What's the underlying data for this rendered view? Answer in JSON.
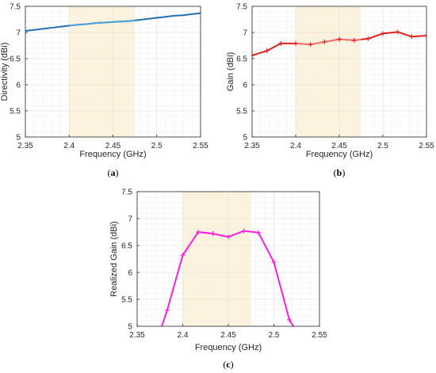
{
  "colors": {
    "band": "#fdf3dc",
    "grid_major": "#e3e3e3",
    "grid_minor": "#f1f1f1",
    "axis": "#262626"
  },
  "chart_data": [
    {
      "id": "a",
      "type": "line",
      "caption": {
        "open": "(",
        "letter": "a",
        "close": ")"
      },
      "xlabel": "Frequency (GHz)",
      "ylabel": "Directivity (dBi)",
      "xlim": [
        2.35,
        2.55
      ],
      "ylim": [
        5,
        7.5
      ],
      "xticks": [
        "2.35",
        "2.4",
        "2.45",
        "2.5",
        "2.55"
      ],
      "xtick_values": [
        2.35,
        2.4,
        2.45,
        2.5,
        2.55
      ],
      "yticks": [
        "5",
        "5.5",
        "6",
        "6.5",
        "7",
        "7.5"
      ],
      "ytick_values": [
        5,
        5.5,
        6,
        6.5,
        7,
        7.5
      ],
      "grid": true,
      "highlight_band": [
        2.4,
        2.475
      ],
      "series": [
        {
          "color": "#1f6fb2",
          "band_color": "#4ba3d9",
          "marker": "none",
          "x": [
            2.35,
            2.36,
            2.37,
            2.38,
            2.39,
            2.4,
            2.41,
            2.42,
            2.43,
            2.44,
            2.45,
            2.46,
            2.47,
            2.48,
            2.49,
            2.5,
            2.51,
            2.52,
            2.53,
            2.54,
            2.55
          ],
          "y": [
            7.03,
            7.05,
            7.07,
            7.09,
            7.11,
            7.13,
            7.15,
            7.16,
            7.18,
            7.19,
            7.2,
            7.21,
            7.22,
            7.24,
            7.26,
            7.28,
            7.3,
            7.32,
            7.33,
            7.35,
            7.37
          ]
        }
      ]
    },
    {
      "id": "b",
      "type": "line",
      "caption": {
        "open": "(",
        "letter": "b",
        "close": ")"
      },
      "xlabel": "Frequency (GHz)",
      "ylabel": "Gain (dBi)",
      "xlim": [
        2.35,
        2.55
      ],
      "ylim": [
        5,
        7.5
      ],
      "xticks": [
        "2.35",
        "2.4",
        "2.45",
        "2.5",
        "2.55"
      ],
      "xtick_values": [
        2.35,
        2.4,
        2.45,
        2.5,
        2.55
      ],
      "yticks": [
        "5",
        "5.5",
        "6",
        "6.5",
        "7",
        "7.5"
      ],
      "ytick_values": [
        5,
        5.5,
        6,
        6.5,
        7,
        7.5
      ],
      "grid": true,
      "highlight_band": [
        2.4,
        2.475
      ],
      "series": [
        {
          "color": "#e0201b",
          "band_color": "#f27a76",
          "marker": "plus",
          "x": [
            2.35,
            2.367,
            2.383,
            2.4,
            2.417,
            2.433,
            2.45,
            2.467,
            2.483,
            2.5,
            2.517,
            2.533,
            2.55
          ],
          "y": [
            6.56,
            6.65,
            6.79,
            6.79,
            6.77,
            6.82,
            6.87,
            6.85,
            6.88,
            6.98,
            7.01,
            6.92,
            6.94
          ]
        }
      ]
    },
    {
      "id": "c",
      "type": "line",
      "caption": {
        "open": "(",
        "letter": "c",
        "close": ")"
      },
      "xlabel": "Frequency (GHz)",
      "ylabel": "Realized Gain (dBi)",
      "xlim": [
        2.35,
        2.55
      ],
      "ylim": [
        5,
        7.5
      ],
      "xticks": [
        "2.35",
        "2.4",
        "2.45",
        "2.5",
        "2.55"
      ],
      "xtick_values": [
        2.35,
        2.4,
        2.45,
        2.5,
        2.55
      ],
      "yticks": [
        "5",
        "5.5",
        "6",
        "6.5",
        "7",
        "7.5"
      ],
      "ytick_values": [
        5,
        5.5,
        6,
        6.5,
        7,
        7.5
      ],
      "grid": true,
      "highlight_band": [
        2.4,
        2.475
      ],
      "series": [
        {
          "color": "#ff1de0",
          "band_color": "#ff1de0",
          "marker": "plus",
          "x": [
            2.375,
            2.383,
            2.4,
            2.417,
            2.433,
            2.45,
            2.467,
            2.483,
            2.5,
            2.517,
            2.525
          ],
          "y": [
            4.9,
            5.3,
            6.32,
            6.75,
            6.72,
            6.66,
            6.77,
            6.74,
            6.19,
            5.12,
            4.9
          ]
        }
      ]
    }
  ]
}
